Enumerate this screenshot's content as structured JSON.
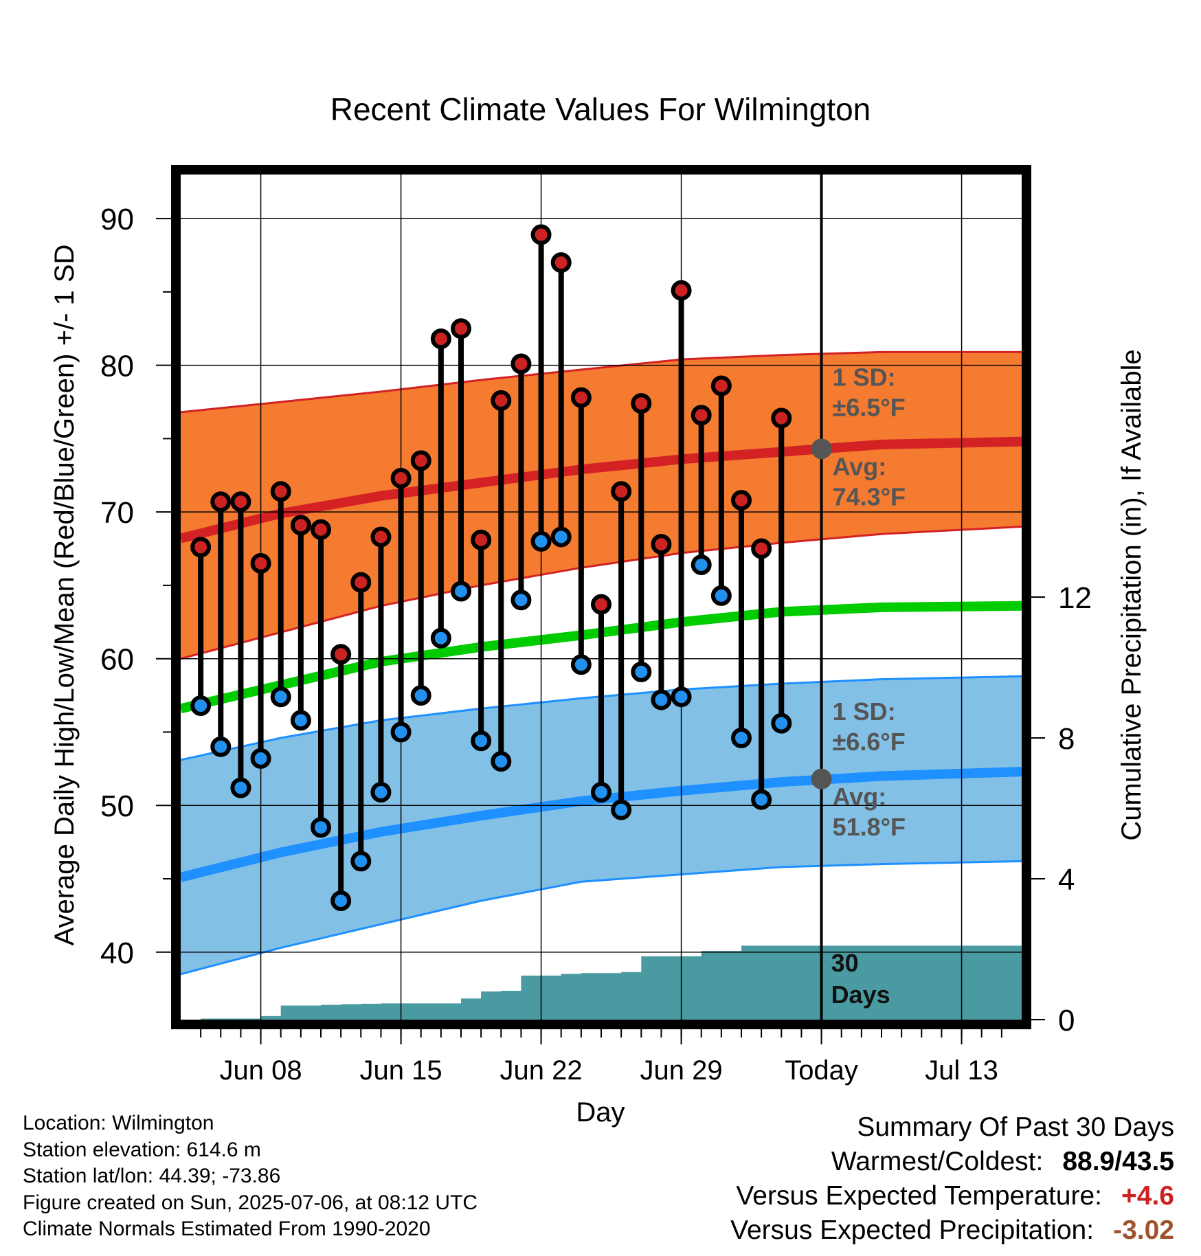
{
  "chart_data": {
    "type": "line",
    "title": "Recent Climate Values For Wilmington",
    "xlabel": "Day",
    "ylabel": "Average Daily High/Low/Mean (Red/Blue/Green) +/- 1 SD",
    "ylabel_right": "Cumulative Precipitation (in), If Available",
    "ylim": [
      35.4,
      93.0
    ],
    "ylim_right": [
      0,
      24
    ],
    "xlim": [
      "2025-06-04",
      "2025-07-16"
    ],
    "x_ticks": [
      {
        "date": "2025-06-08",
        "label": "Jun 08"
      },
      {
        "date": "2025-06-15",
        "label": "Jun 15"
      },
      {
        "date": "2025-06-22",
        "label": "Jun 22"
      },
      {
        "date": "2025-06-29",
        "label": "Jun 29"
      },
      {
        "date": "2025-07-06",
        "label": "Today"
      },
      {
        "date": "2025-07-13",
        "label": "Jul 13"
      }
    ],
    "y_ticks": [
      "40",
      "50",
      "60",
      "70",
      "80",
      "90"
    ],
    "y_ticks_right": [
      "0",
      "4",
      "8",
      "12"
    ],
    "grid": true,
    "today": "2025-07-06",
    "colors": {
      "high_band": "#f47b30",
      "high_line": "#d32124",
      "low_band": "#82c0e6",
      "low_line": "#1e90ff",
      "mean_line": "#00cc00",
      "precip": "#4a9aa2",
      "high_marker": "#cc2222",
      "low_marker": "#2290ee",
      "positive_text": "#cc2222",
      "negative_text": "#a0522d"
    },
    "normals": {
      "dates": [
        "2025-06-04",
        "2025-06-09",
        "2025-06-14",
        "2025-06-19",
        "2025-06-24",
        "2025-06-29",
        "2025-07-04",
        "2025-07-09",
        "2025-07-16"
      ],
      "high_avg": [
        68.2,
        69.9,
        71.1,
        72.0,
        72.9,
        73.6,
        74.1,
        74.6,
        74.8
      ],
      "high_upper": [
        76.8,
        77.5,
        78.2,
        79.0,
        79.7,
        80.4,
        80.7,
        80.9,
        80.9
      ],
      "high_lower": [
        60.0,
        61.8,
        63.6,
        65.0,
        66.2,
        67.2,
        67.9,
        68.5,
        69.0
      ],
      "mean": [
        56.6,
        58.2,
        59.8,
        60.8,
        61.6,
        62.5,
        63.2,
        63.5,
        63.6
      ],
      "low_avg": [
        45.1,
        46.8,
        48.2,
        49.3,
        50.3,
        51.0,
        51.6,
        52.0,
        52.3
      ],
      "low_upper": [
        53.1,
        54.6,
        55.8,
        56.6,
        57.3,
        57.9,
        58.3,
        58.6,
        58.8
      ],
      "low_lower": [
        38.5,
        40.3,
        41.9,
        43.5,
        44.8,
        45.3,
        45.8,
        46.0,
        46.2
      ]
    },
    "series": [
      {
        "name": "High",
        "values": [
          67.6,
          70.7,
          70.7,
          66.5,
          71.4,
          69.1,
          68.8,
          60.3,
          65.2,
          68.3,
          72.3,
          73.5,
          81.8,
          82.5,
          68.1,
          77.6,
          80.1,
          88.9,
          87.0,
          77.8,
          63.7,
          71.4,
          77.4,
          67.8,
          85.1,
          76.6,
          78.6,
          70.8,
          67.5,
          76.4
        ]
      },
      {
        "name": "Low",
        "values": [
          56.8,
          54.0,
          51.2,
          53.2,
          57.4,
          55.8,
          48.5,
          43.5,
          46.2,
          50.9,
          55.0,
          57.5,
          61.4,
          64.6,
          54.4,
          53.0,
          64.0,
          68.0,
          68.3,
          59.6,
          50.9,
          49.7,
          59.1,
          57.2,
          57.4,
          66.4,
          64.3,
          54.6,
          50.4,
          55.6
        ]
      }
    ],
    "x": [
      "2025-06-05",
      "2025-06-06",
      "2025-06-07",
      "2025-06-08",
      "2025-06-09",
      "2025-06-10",
      "2025-06-11",
      "2025-06-12",
      "2025-06-13",
      "2025-06-14",
      "2025-06-15",
      "2025-06-16",
      "2025-06-17",
      "2025-06-18",
      "2025-06-19",
      "2025-06-20",
      "2025-06-21",
      "2025-06-22",
      "2025-06-23",
      "2025-06-24",
      "2025-06-25",
      "2025-06-26",
      "2025-06-27",
      "2025-06-28",
      "2025-06-29",
      "2025-06-30",
      "2025-07-01",
      "2025-07-02",
      "2025-07-03",
      "2025-07-04"
    ],
    "precip": {
      "dates": [
        "2025-06-05",
        "2025-06-06",
        "2025-06-07",
        "2025-06-08",
        "2025-06-09",
        "2025-06-10",
        "2025-06-11",
        "2025-06-12",
        "2025-06-13",
        "2025-06-14",
        "2025-06-15",
        "2025-06-16",
        "2025-06-17",
        "2025-06-18",
        "2025-06-19",
        "2025-06-20",
        "2025-06-21",
        "2025-06-22",
        "2025-06-23",
        "2025-06-24",
        "2025-06-25",
        "2025-06-26",
        "2025-06-27",
        "2025-06-28",
        "2025-06-29",
        "2025-06-30",
        "2025-07-01",
        "2025-07-02",
        "2025-07-03",
        "2025-07-04",
        "2025-07-05",
        "2025-07-06",
        "2025-07-16"
      ],
      "cumulative_in": [
        0.03,
        0.03,
        0.03,
        0.1,
        0.4,
        0.4,
        0.42,
        0.44,
        0.45,
        0.46,
        0.46,
        0.46,
        0.46,
        0.6,
        0.8,
        0.82,
        1.25,
        1.25,
        1.3,
        1.32,
        1.32,
        1.35,
        1.8,
        1.8,
        1.8,
        1.95,
        1.95,
        2.1,
        2.1,
        2.1,
        2.1,
        2.1,
        2.1
      ]
    },
    "annotations": {
      "high_sd": {
        "title": "1 SD:",
        "value": "±6.5°F"
      },
      "high_avg": {
        "title": "Avg:",
        "value": "74.3°F",
        "number": 74.3
      },
      "low_sd": {
        "title": "1 SD:",
        "value": "±6.6°F"
      },
      "low_avg": {
        "title": "Avg:",
        "value": "51.8°F",
        "number": 51.8
      },
      "precip_window": {
        "line1": "30",
        "line2": "Days"
      }
    }
  },
  "footer_left": [
    "Location: Wilmington",
    "Station elevation: 614.6 m",
    "Station lat/lon: 44.39; -73.86",
    "Figure created on Sun, 2025-07-06, at 08:12 UTC",
    "Climate Normals Estimated From 1990-2020"
  ],
  "summary": {
    "title": "Summary Of Past 30 Days",
    "warmest_coldest_label": "Warmest/Coldest:",
    "warmest_coldest_value": "88.9/43.5",
    "temp_label": "Versus Expected Temperature:",
    "temp_value": "+4.6",
    "precip_label": "Versus Expected Precipitation:",
    "precip_value": "-3.02"
  }
}
